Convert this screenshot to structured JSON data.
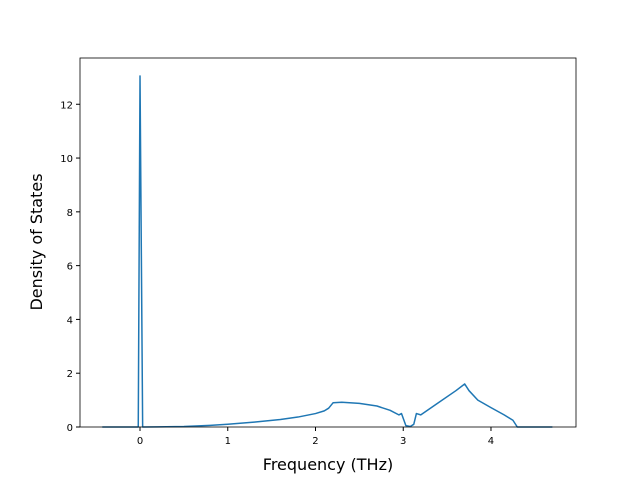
{
  "chart_data": {
    "type": "line",
    "x_label": "Frequency (THz)",
    "y_label": "Density of States",
    "x": [
      -0.43,
      -0.02,
      0.0,
      0.03,
      0.2,
      0.5,
      0.8,
      1.0,
      1.3,
      1.6,
      1.8,
      2.0,
      2.1,
      2.15,
      2.2,
      2.3,
      2.5,
      2.7,
      2.85,
      2.95,
      2.98,
      3.03,
      3.08,
      3.12,
      3.15,
      3.2,
      3.4,
      3.6,
      3.7,
      3.75,
      3.85,
      4.0,
      4.15,
      4.25,
      4.3,
      4.7
    ],
    "series": [
      {
        "name": "DOS",
        "color": "#1f77b4",
        "values": [
          0,
          0,
          13.05,
          0,
          0.005,
          0.02,
          0.06,
          0.1,
          0.18,
          0.28,
          0.37,
          0.5,
          0.6,
          0.7,
          0.9,
          0.92,
          0.88,
          0.78,
          0.62,
          0.45,
          0.5,
          0.05,
          0.02,
          0.1,
          0.5,
          0.45,
          0.9,
          1.35,
          1.6,
          1.35,
          1.0,
          0.72,
          0.45,
          0.25,
          0.0,
          0.0
        ]
      }
    ],
    "xlim": [
      -0.684,
      4.969
    ],
    "ylim": [
      0,
      13.72
    ],
    "xticks": [
      0,
      1,
      2,
      3,
      4
    ],
    "yticks": [
      0,
      2,
      4,
      6,
      8,
      10,
      12
    ]
  }
}
